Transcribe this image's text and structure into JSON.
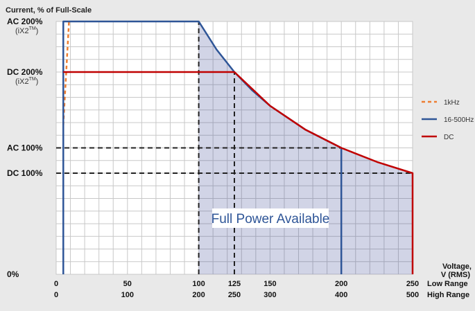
{
  "chart_data": {
    "type": "line",
    "title": "Current, % of Full-Scale",
    "xlabel": [
      "Voltage,",
      "V (RMS)"
    ],
    "range_labels": [
      "Low Range",
      "High Range"
    ],
    "x_ticks_low": [
      "0",
      "50",
      "100",
      "125",
      "150",
      "200",
      "250"
    ],
    "x_ticks_high": [
      "0",
      "100",
      "200",
      "250",
      "300",
      "400",
      "500"
    ],
    "x_tick_values": [
      0,
      50,
      100,
      125,
      150,
      200,
      250
    ],
    "xlim": [
      0,
      250
    ],
    "y_ticks": [
      {
        "label": "AC 200%",
        "sub": "(iX2",
        "tm": "TM",
        "close": ")",
        "value": 200
      },
      {
        "label": "DC 200%",
        "sub": "(iX2",
        "tm": "TM",
        "close": ")",
        "value": 160
      },
      {
        "label": "AC 100%",
        "value": 100
      },
      {
        "label": "DC 100%",
        "value": 80
      },
      {
        "label": "0%",
        "value": 0
      }
    ],
    "ylim": [
      0,
      200
    ],
    "grid": true,
    "legend_position": "right",
    "series": [
      {
        "name": "1kHz",
        "color": "#ed7d31",
        "dash": true,
        "x": [
          5,
          9
        ],
        "y": [
          118,
          200
        ]
      },
      {
        "name": "16-500Hz",
        "color": "#2e5597",
        "dash": false,
        "x": [
          5,
          5,
          100,
          112.5,
          125,
          137.5,
          150,
          175,
          200,
          200
        ],
        "y": [
          0,
          200,
          200,
          177.8,
          160,
          145.5,
          133.3,
          114.3,
          100,
          0
        ]
      },
      {
        "name": "DC",
        "color": "#c00000",
        "dash": false,
        "x": [
          5,
          125,
          125,
          150,
          175,
          200,
          225,
          250,
          250
        ],
        "y": [
          160,
          160,
          160,
          133.3,
          114.3,
          100,
          88.9,
          80,
          0
        ]
      }
    ],
    "shaded_region": {
      "color": "#2e3d8c",
      "x": [
        100,
        112.5,
        125,
        137.5,
        150,
        175,
        200,
        225,
        250,
        250,
        100
      ],
      "y": [
        200,
        177.8,
        160,
        145.5,
        133.3,
        114.3,
        100,
        88.9,
        80,
        0,
        0
      ]
    },
    "reference_lines": [
      {
        "orientation": "horizontal",
        "value": 100,
        "from": 0,
        "to": 200
      },
      {
        "orientation": "horizontal",
        "value": 80,
        "from": 0,
        "to": 250
      },
      {
        "orientation": "vertical",
        "value": 100,
        "from": 0,
        "to": 200
      },
      {
        "orientation": "vertical",
        "value": 125,
        "from": 0,
        "to": 160
      }
    ],
    "annotation": "Full Power Available"
  }
}
